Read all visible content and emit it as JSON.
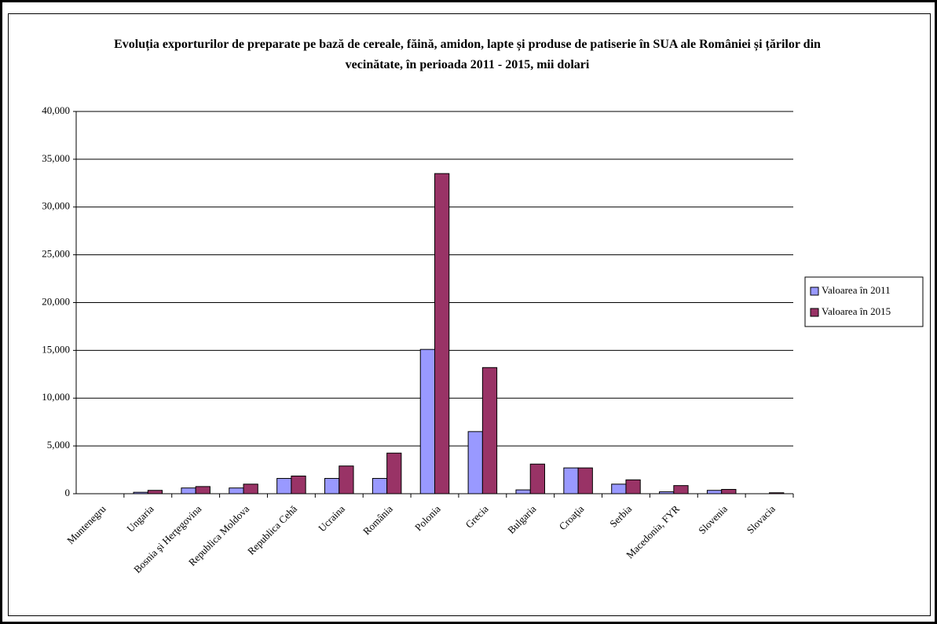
{
  "chart_data": {
    "type": "bar",
    "title": "Evoluția exporturilor de preparate pe bază de cereale, făină, amidon, lapte și produse de patiserie în SUA ale României și țărilor din vecinătate, în perioada 2011 - 2015, mii dolari",
    "categories": [
      "Muntenegru",
      "Ungaria",
      "Bosnia şi Herţegovina",
      "Republica Moldova",
      "Republica Cehă",
      "Ucraina",
      "România",
      "Polonia",
      "Grecia",
      "Bulgaria",
      "Croaţia",
      "Serbia",
      "Macedonia, FYR",
      "Slovenia",
      "Slovacia"
    ],
    "series": [
      {
        "name": "Valoarea în 2011",
        "color": "#9999ff",
        "values": [
          0,
          150,
          600,
          600,
          1600,
          1600,
          1600,
          15100,
          6500,
          400,
          2700,
          1000,
          200,
          350,
          0
        ]
      },
      {
        "name": "Valoarea în 2015",
        "color": "#993366",
        "values": [
          0,
          350,
          750,
          1000,
          1850,
          2900,
          4250,
          33500,
          13200,
          3100,
          2700,
          1450,
          850,
          450,
          100
        ]
      }
    ],
    "ylim": [
      0,
      40000
    ],
    "yticks": [
      0,
      {
        "value": 5000,
        "label": "5,000"
      },
      {
        "value": 10000,
        "label": "10,000"
      },
      {
        "value": 15000,
        "label": "15,000"
      },
      {
        "value": 20000,
        "label": "20,000"
      },
      {
        "value": 25000,
        "label": "25,000"
      },
      {
        "value": 30000,
        "label": "30,000"
      },
      {
        "value": 35000,
        "label": "35,000"
      },
      {
        "value": 40000,
        "label": "40,000"
      }
    ],
    "grid": true,
    "legend": "right"
  }
}
